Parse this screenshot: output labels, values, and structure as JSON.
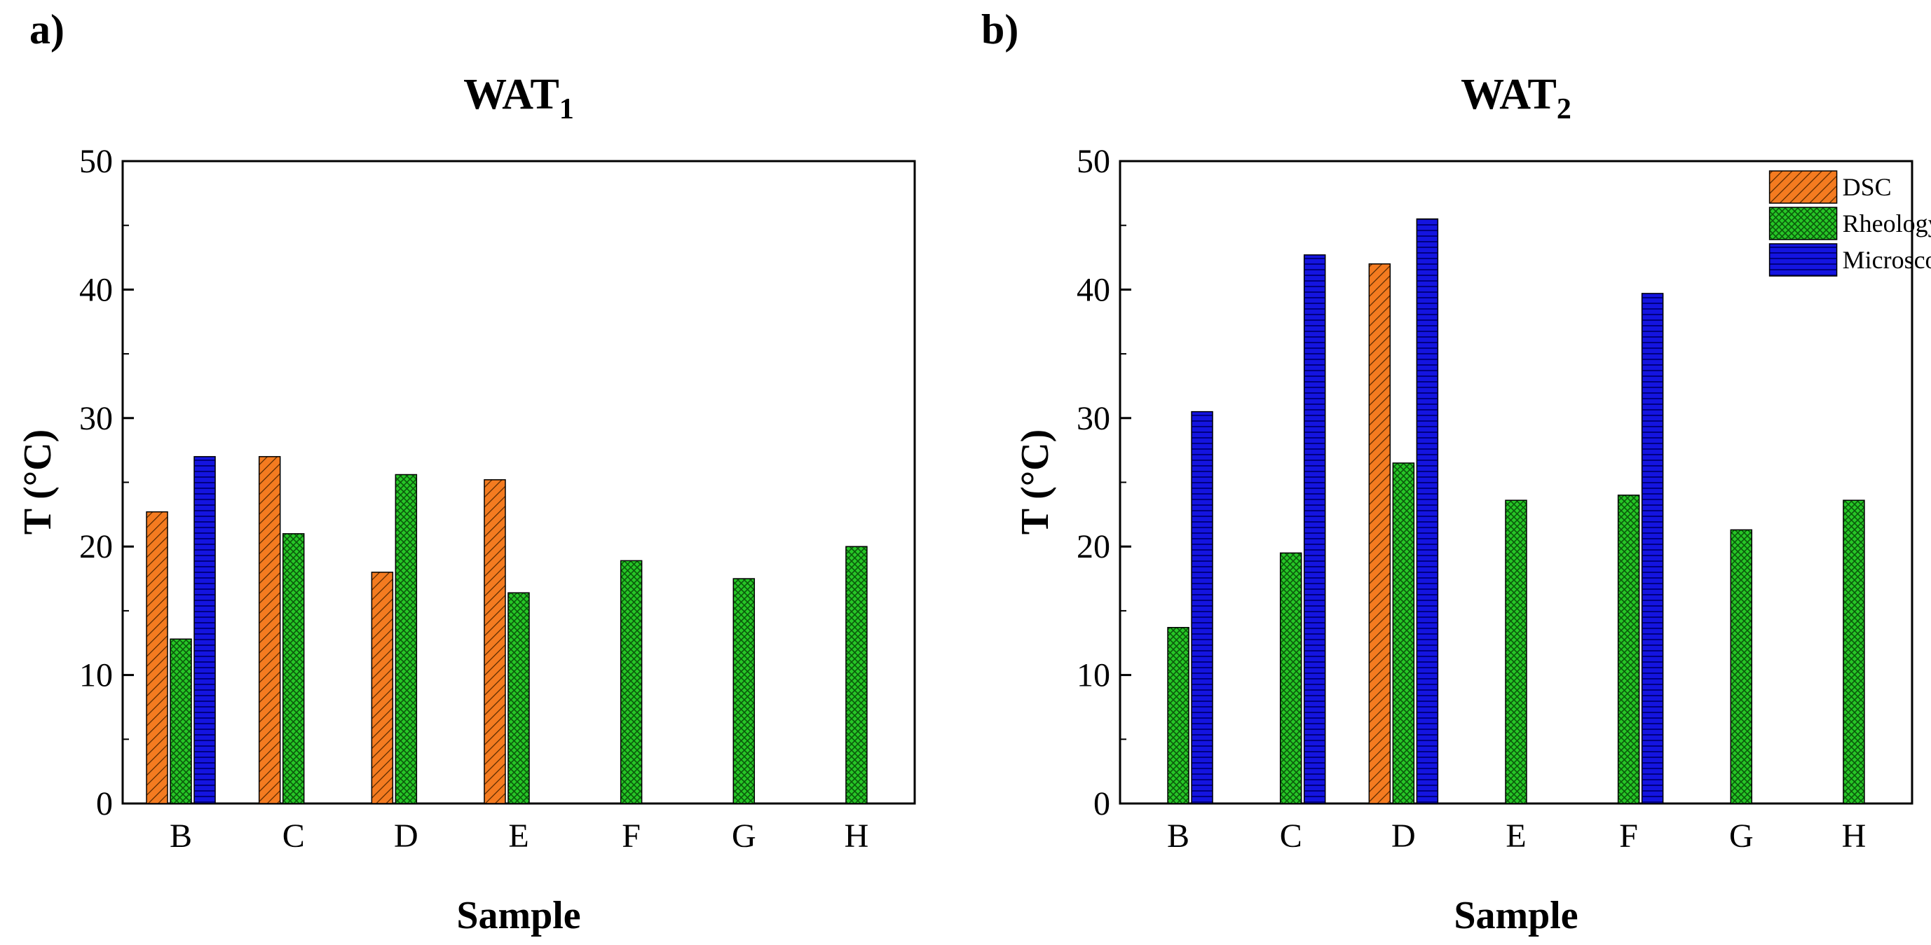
{
  "colors": {
    "DSC": "#f47b20",
    "Rheology": "#22c222",
    "Microscopy": "#1414e0",
    "axis": "#000000"
  },
  "chart_data": [
    {
      "panel": "a)",
      "type": "bar",
      "title": "WAT",
      "title_sub": "1",
      "xlabel": "Sample",
      "ylabel": "T (°C)",
      "ylim": [
        0,
        50
      ],
      "yticks": [
        0,
        10,
        20,
        30,
        40,
        50
      ],
      "categories": [
        "B",
        "C",
        "D",
        "E",
        "F",
        "G",
        "H"
      ],
      "legend": false,
      "series": [
        {
          "name": "DSC",
          "values": [
            22.7,
            27.0,
            18.0,
            25.2,
            null,
            null,
            null
          ]
        },
        {
          "name": "Rheology",
          "values": [
            12.8,
            21.0,
            25.6,
            16.4,
            18.9,
            17.5,
            20.0
          ]
        },
        {
          "name": "Microscopy",
          "values": [
            27.0,
            null,
            null,
            null,
            null,
            null,
            null
          ]
        }
      ]
    },
    {
      "panel": "b)",
      "type": "bar",
      "title": "WAT",
      "title_sub": "2",
      "xlabel": "Sample",
      "ylabel": "T (°C)",
      "ylim": [
        0,
        50
      ],
      "yticks": [
        0,
        10,
        20,
        30,
        40,
        50
      ],
      "categories": [
        "B",
        "C",
        "D",
        "E",
        "F",
        "G",
        "H"
      ],
      "legend": true,
      "legend_position": "top-right",
      "series": [
        {
          "name": "DSC",
          "values": [
            null,
            null,
            42.0,
            null,
            null,
            null,
            null
          ]
        },
        {
          "name": "Rheology",
          "values": [
            13.7,
            19.5,
            26.5,
            23.6,
            24.0,
            21.3,
            23.6
          ]
        },
        {
          "name": "Microscopy",
          "values": [
            30.5,
            42.7,
            45.5,
            null,
            39.7,
            null,
            null
          ]
        }
      ]
    }
  ]
}
